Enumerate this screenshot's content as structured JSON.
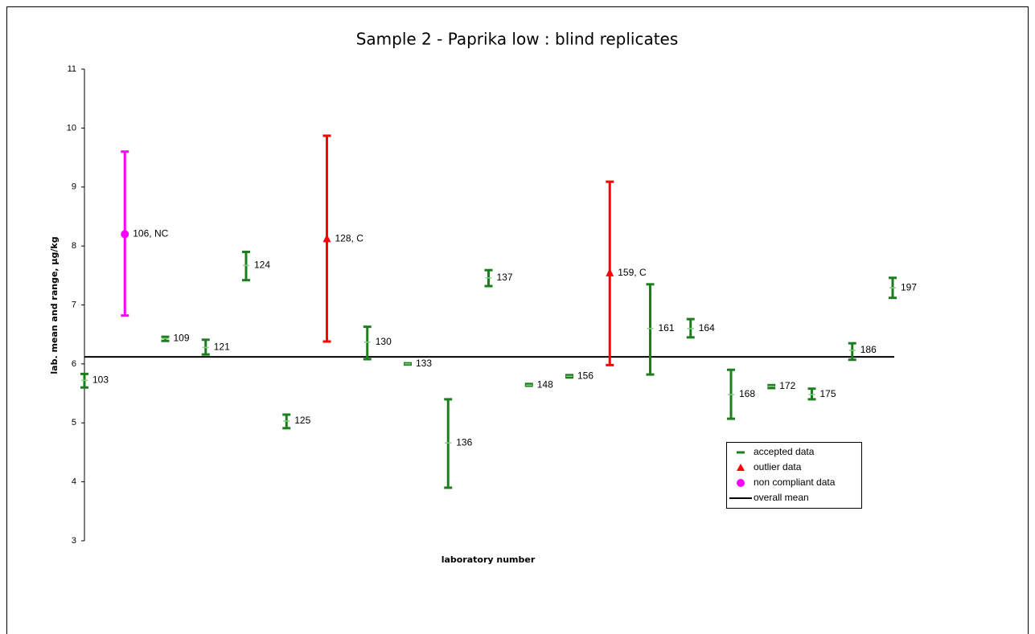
{
  "chart_data": {
    "type": "range",
    "title": "Sample 2 - Paprika low : blind replicates",
    "y_label": "lab. mean and range, µg/kg",
    "x_label": "laboratory number",
    "ylim": [
      3,
      11
    ],
    "yticks": [
      3,
      4,
      5,
      6,
      7,
      8,
      9,
      10,
      11
    ],
    "categories": [
      "103",
      "106, NC",
      "109",
      "121",
      "124",
      "125",
      "128, C",
      "130",
      "133",
      "136",
      "137",
      "148",
      "156",
      "159, C",
      "161",
      "164",
      "168",
      "172",
      "175",
      "186",
      "197"
    ],
    "series": [
      {
        "name": "accepted data",
        "color": "#1e7d1e",
        "marker": "dash",
        "values": [
          5.72,
          null,
          6.43,
          6.28,
          7.67,
          5.03,
          null,
          6.37,
          6.0,
          4.66,
          7.46,
          5.64,
          5.79,
          null,
          6.6,
          6.6,
          5.48,
          5.62,
          5.48,
          6.23,
          7.29
        ],
        "low": [
          5.6,
          null,
          6.39,
          6.16,
          7.42,
          4.91,
          null,
          6.08,
          5.99,
          3.9,
          7.32,
          5.63,
          5.77,
          null,
          5.82,
          6.45,
          5.07,
          5.59,
          5.4,
          6.07,
          7.12
        ],
        "high": [
          5.83,
          null,
          6.46,
          6.41,
          7.9,
          5.14,
          null,
          6.63,
          6.01,
          5.4,
          7.59,
          5.66,
          5.81,
          null,
          7.35,
          6.76,
          5.9,
          5.64,
          5.58,
          6.35,
          7.46
        ]
      },
      {
        "name": "outlier data",
        "color": "#ff0000",
        "marker": "triangle",
        "values": [
          null,
          null,
          null,
          null,
          null,
          null,
          8.12,
          null,
          null,
          null,
          null,
          null,
          null,
          7.54,
          null,
          null,
          null,
          null,
          null,
          null,
          null
        ],
        "low": [
          null,
          null,
          null,
          null,
          null,
          null,
          6.38,
          null,
          null,
          null,
          null,
          null,
          null,
          5.98,
          null,
          null,
          null,
          null,
          null,
          null,
          null
        ],
        "high": [
          null,
          null,
          null,
          null,
          null,
          null,
          9.87,
          null,
          null,
          null,
          null,
          null,
          null,
          9.09,
          null,
          null,
          null,
          null,
          null,
          null,
          null
        ]
      },
      {
        "name": "non compliant data",
        "color": "#ff00ff",
        "marker": "circle",
        "values": [
          null,
          8.2,
          null,
          null,
          null,
          null,
          null,
          null,
          null,
          null,
          null,
          null,
          null,
          null,
          null,
          null,
          null,
          null,
          null,
          null,
          null
        ],
        "low": [
          null,
          6.82,
          null,
          null,
          null,
          null,
          null,
          null,
          null,
          null,
          null,
          null,
          null,
          null,
          null,
          null,
          null,
          null,
          null,
          null,
          null
        ],
        "high": [
          null,
          9.6,
          null,
          null,
          null,
          null,
          null,
          null,
          null,
          null,
          null,
          null,
          null,
          null,
          null,
          null,
          null,
          null,
          null,
          null,
          null
        ]
      }
    ],
    "reference": {
      "name": "overall mean",
      "color": "#000000",
      "marker": "line",
      "value": 6.12
    }
  }
}
